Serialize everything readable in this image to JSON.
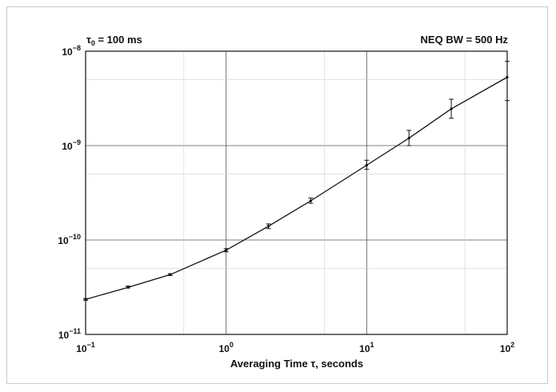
{
  "chart_data": {
    "type": "line",
    "title": "",
    "annotations": {
      "tau0": {
        "symbol": "τ",
        "subscript": "0",
        "rest": " = 100 ms"
      },
      "bandwidth": "NEQ BW = 500 Hz"
    },
    "xlabel": {
      "prefix": "Averaging Time ",
      "symbol": "τ",
      "suffix": ", seconds"
    },
    "ylabel": "",
    "x_scale": "log",
    "y_scale": "log",
    "xlim": [
      0.1,
      100
    ],
    "ylim": [
      1e-11,
      1e-08
    ],
    "grid": true,
    "x_ticks": [
      {
        "value": 0.1,
        "base": "10",
        "exp": "−1"
      },
      {
        "value": 1,
        "base": "10",
        "exp": "0"
      },
      {
        "value": 10,
        "base": "10",
        "exp": "1"
      },
      {
        "value": 100,
        "base": "10",
        "exp": "2"
      }
    ],
    "y_ticks": [
      {
        "value": 1e-11,
        "base": "10",
        "exp": "−11"
      },
      {
        "value": 1e-10,
        "base": "10",
        "exp": "−10"
      },
      {
        "value": 1e-09,
        "base": "10",
        "exp": "−9"
      },
      {
        "value": 1e-08,
        "base": "10",
        "exp": "−8"
      }
    ],
    "series": [
      {
        "points": [
          {
            "x": 0.1,
            "y": 2.35e-11,
            "err_low": 2.3e-11,
            "err_high": 2.4e-11
          },
          {
            "x": 0.2,
            "y": 3.15e-11,
            "err_low": 3.1e-11,
            "err_high": 3.25e-11
          },
          {
            "x": 0.4,
            "y": 4.3e-11,
            "err_low": 4.2e-11,
            "err_high": 4.4e-11
          },
          {
            "x": 1,
            "y": 7.8e-11,
            "err_low": 7.5e-11,
            "err_high": 8.1e-11
          },
          {
            "x": 2,
            "y": 1.4e-10,
            "err_low": 1.32e-10,
            "err_high": 1.48e-10
          },
          {
            "x": 4,
            "y": 2.6e-10,
            "err_low": 2.45e-10,
            "err_high": 2.78e-10
          },
          {
            "x": 10,
            "y": 6.2e-10,
            "err_low": 5.6e-10,
            "err_high": 7e-10
          },
          {
            "x": 20,
            "y": 1.2e-09,
            "err_low": 1e-09,
            "err_high": 1.45e-09
          },
          {
            "x": 40,
            "y": 2.45e-09,
            "err_low": 1.95e-09,
            "err_high": 3.1e-09
          },
          {
            "x": 100,
            "y": 5.3e-09,
            "err_low": 3e-09,
            "err_high": 7.8e-09
          }
        ]
      }
    ]
  }
}
